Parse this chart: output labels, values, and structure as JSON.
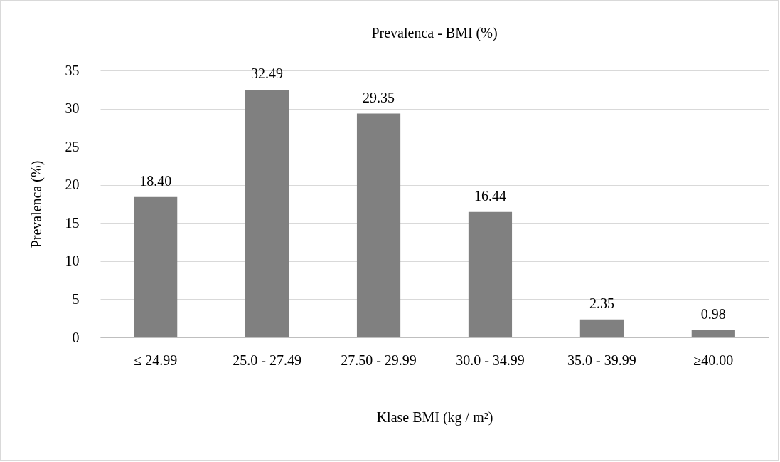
{
  "chart_data": {
    "type": "bar",
    "title": "Prevalenca - BMI (%)",
    "xlabel": "Klase BMI (kg / m²)",
    "ylabel": "Prevalenca (%)",
    "categories": [
      "≤ 24.99",
      "25.0 - 27.49",
      "27.50 - 29.99",
      "30.0 - 34.99",
      "35.0 - 39.99",
      "≥40.00"
    ],
    "values": [
      18.4,
      32.49,
      29.35,
      16.44,
      2.35,
      0.98
    ],
    "value_labels": [
      "18.40",
      "32.49",
      "29.35",
      "16.44",
      "2.35",
      "0.98"
    ],
    "color": "#808080",
    "ylim": [
      0,
      35
    ],
    "yticks": [
      0,
      5,
      10,
      15,
      20,
      25,
      30,
      35
    ],
    "grid": "y"
  }
}
